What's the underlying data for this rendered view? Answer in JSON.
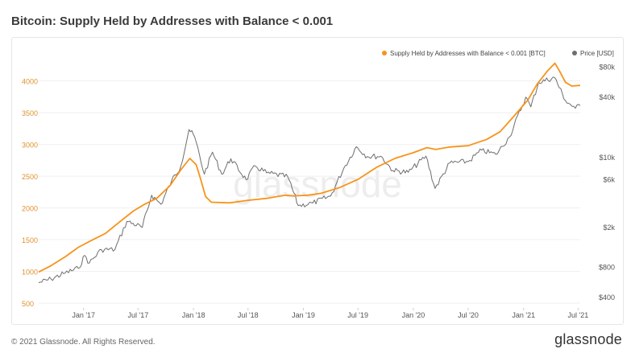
{
  "page": {
    "title": "Bitcoin: Supply Held by Addresses with Balance < 0.001",
    "copyright": "© 2021 Glassnode. All Rights Reserved.",
    "logo": "glassnode",
    "watermark": "glassnode"
  },
  "colors": {
    "supply": "#f7931a",
    "price": "#6e6e6e",
    "left_axis_text": "#e0912f",
    "right_axis_text": "#555555",
    "grid": "#efefef"
  },
  "chart_data": {
    "type": "line",
    "title": "Bitcoin: Supply Held by Addresses with Balance < 0.001",
    "x_range": [
      "2016-08-05",
      "2021-07-08"
    ],
    "x_ticks": [
      {
        "date": "2017-01-01",
        "label": "Jan '17"
      },
      {
        "date": "2017-07-01",
        "label": "Jul '17"
      },
      {
        "date": "2018-01-01",
        "label": "Jan '18"
      },
      {
        "date": "2018-07-01",
        "label": "Jul '18"
      },
      {
        "date": "2019-01-01",
        "label": "Jan '19"
      },
      {
        "date": "2019-07-01",
        "label": "Jul '19"
      },
      {
        "date": "2020-01-01",
        "label": "Jan '20"
      },
      {
        "date": "2020-07-01",
        "label": "Jul '20"
      },
      {
        "date": "2021-01-01",
        "label": "Jan '21"
      },
      {
        "date": "2021-07-01",
        "label": "Jul '21"
      }
    ],
    "y_left": {
      "ylim": [
        500,
        4300
      ],
      "ticks": [
        500,
        1000,
        1500,
        2000,
        2500,
        3000,
        3500,
        4000
      ],
      "tick_labels": [
        "500",
        "1000",
        "1500",
        "2000",
        "2500",
        "3000",
        "3500",
        "4000"
      ]
    },
    "y_right": {
      "scale": "log",
      "ylim": [
        350,
        90000
      ],
      "ticks": [
        400,
        800,
        2000,
        6000,
        10000,
        40000,
        80000
      ],
      "tick_labels": [
        "$400",
        "$800",
        "$2k",
        "$6k",
        "$10k",
        "$40k",
        "$80k"
      ]
    },
    "legend_position": "top-right",
    "legend": [
      {
        "name": "Supply Held by Addresses with Balance < 0.001 [BTC]",
        "key": "supply"
      },
      {
        "name": "Price [USD]",
        "key": "price"
      }
    ],
    "series": [
      {
        "name": "Supply Held by Addresses with Balance < 0.001 [BTC]",
        "key": "supply",
        "axis": "left",
        "points": [
          [
            "2016-08-05",
            990
          ],
          [
            "2016-09-15",
            1090
          ],
          [
            "2016-11-01",
            1230
          ],
          [
            "2016-12-15",
            1380
          ],
          [
            "2017-02-01",
            1500
          ],
          [
            "2017-03-15",
            1600
          ],
          [
            "2017-05-01",
            1780
          ],
          [
            "2017-06-15",
            1950
          ],
          [
            "2017-07-20",
            2050
          ],
          [
            "2017-09-01",
            2150
          ],
          [
            "2017-10-15",
            2350
          ],
          [
            "2017-11-20",
            2600
          ],
          [
            "2017-12-20",
            2780
          ],
          [
            "2018-01-10",
            2680
          ],
          [
            "2018-01-25",
            2450
          ],
          [
            "2018-02-10",
            2180
          ],
          [
            "2018-03-01",
            2090
          ],
          [
            "2018-05-01",
            2080
          ],
          [
            "2018-07-01",
            2120
          ],
          [
            "2018-09-01",
            2150
          ],
          [
            "2018-11-01",
            2200
          ],
          [
            "2018-12-01",
            2190
          ],
          [
            "2019-01-15",
            2200
          ],
          [
            "2019-03-01",
            2230
          ],
          [
            "2019-05-01",
            2320
          ],
          [
            "2019-07-01",
            2450
          ],
          [
            "2019-09-01",
            2640
          ],
          [
            "2019-11-01",
            2780
          ],
          [
            "2020-01-01",
            2870
          ],
          [
            "2020-02-15",
            2950
          ],
          [
            "2020-03-15",
            2920
          ],
          [
            "2020-05-01",
            2960
          ],
          [
            "2020-07-01",
            2980
          ],
          [
            "2020-09-01",
            3080
          ],
          [
            "2020-10-15",
            3200
          ],
          [
            "2020-12-01",
            3450
          ],
          [
            "2021-01-15",
            3700
          ],
          [
            "2021-02-15",
            3950
          ],
          [
            "2021-03-20",
            4150
          ],
          [
            "2021-04-15",
            4280
          ],
          [
            "2021-05-01",
            4150
          ],
          [
            "2021-05-20",
            3980
          ],
          [
            "2021-06-10",
            3920
          ],
          [
            "2021-07-08",
            3930
          ]
        ]
      },
      {
        "name": "Price [USD]",
        "key": "price",
        "axis": "right",
        "points": [
          [
            "2016-08-05",
            560
          ],
          [
            "2016-09-15",
            610
          ],
          [
            "2016-11-01",
            700
          ],
          [
            "2016-12-15",
            780
          ],
          [
            "2017-01-05",
            1050
          ],
          [
            "2017-01-20",
            880
          ],
          [
            "2017-03-01",
            1200
          ],
          [
            "2017-04-15",
            1200
          ],
          [
            "2017-05-25",
            2300
          ],
          [
            "2017-07-15",
            2000
          ],
          [
            "2017-08-15",
            4200
          ],
          [
            "2017-09-15",
            3400
          ],
          [
            "2017-10-20",
            5800
          ],
          [
            "2017-11-20",
            8200
          ],
          [
            "2017-12-17",
            19000
          ],
          [
            "2018-01-05",
            16000
          ],
          [
            "2018-02-06",
            6800
          ],
          [
            "2018-03-05",
            11300
          ],
          [
            "2018-04-05",
            6800
          ],
          [
            "2018-05-05",
            9700
          ],
          [
            "2018-06-25",
            6000
          ],
          [
            "2018-07-25",
            8200
          ],
          [
            "2018-09-01",
            7000
          ],
          [
            "2018-11-10",
            6400
          ],
          [
            "2018-12-15",
            3300
          ],
          [
            "2019-02-01",
            3500
          ],
          [
            "2019-04-01",
            4100
          ],
          [
            "2019-05-15",
            7800
          ],
          [
            "2019-06-26",
            12800
          ],
          [
            "2019-08-01",
            10200
          ],
          [
            "2019-09-15",
            10300
          ],
          [
            "2019-10-25",
            7400
          ],
          [
            "2019-12-15",
            7100
          ],
          [
            "2020-02-12",
            10300
          ],
          [
            "2020-03-13",
            4900
          ],
          [
            "2020-05-01",
            8800
          ],
          [
            "2020-07-01",
            9100
          ],
          [
            "2020-08-15",
            11800
          ],
          [
            "2020-10-01",
            10700
          ],
          [
            "2020-11-15",
            16000
          ],
          [
            "2021-01-08",
            40000
          ],
          [
            "2021-01-25",
            32000
          ],
          [
            "2021-02-20",
            56000
          ],
          [
            "2021-04-14",
            63000
          ],
          [
            "2021-05-20",
            37000
          ],
          [
            "2021-06-22",
            31000
          ],
          [
            "2021-07-08",
            33000
          ]
        ]
      }
    ]
  }
}
